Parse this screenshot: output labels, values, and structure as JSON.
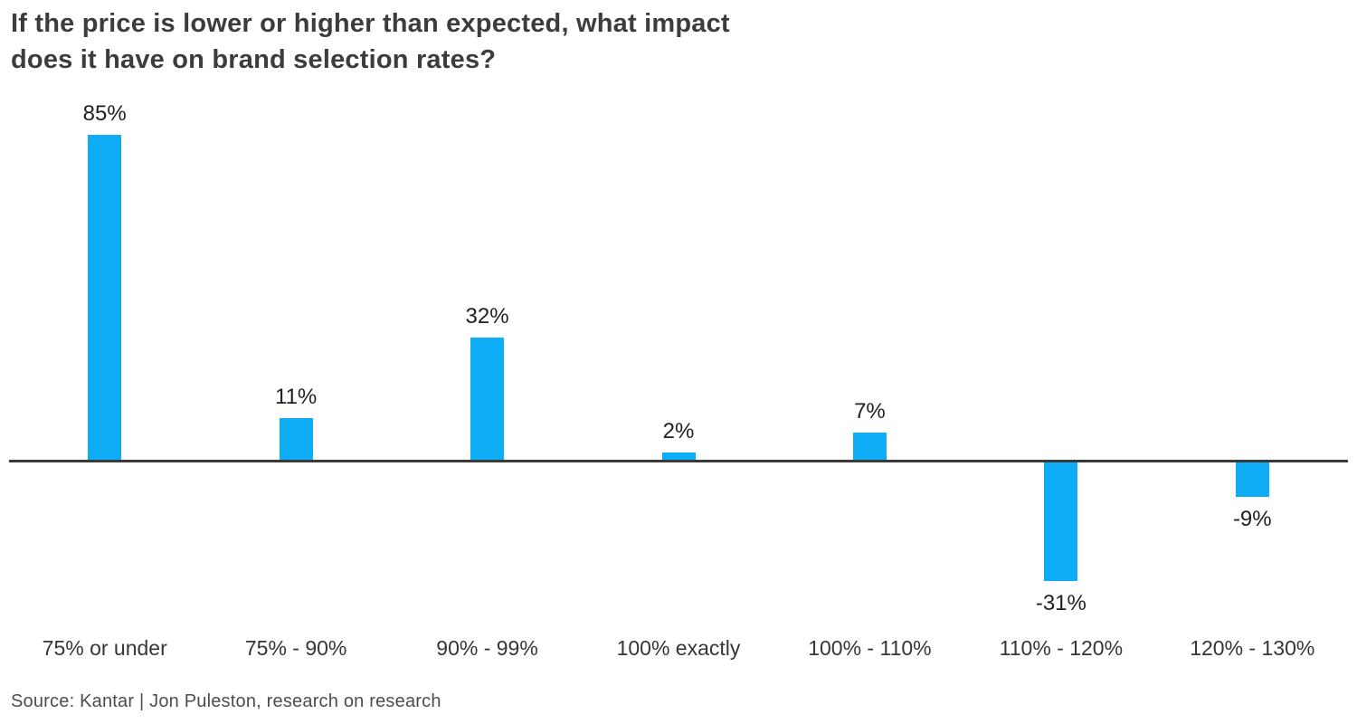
{
  "page": {
    "title_line1": "If the price is lower or higher than expected, what impact",
    "title_line2": "does it have on brand selection rates?",
    "source": "Source: Kantar | Jon Puleston, research on research"
  },
  "colors": {
    "bar": "#0fadf5",
    "axis": "#3a3a3a",
    "title_text": "#3c3c3c",
    "value_label_text": "#1f1f1f",
    "category_text": "#363636",
    "source_text": "#4d4d4d",
    "background": "#ffffff"
  },
  "chart_data": {
    "type": "bar",
    "title": "If the price is lower or higher than expected, what impact does it have on brand selection rates?",
    "categories": [
      "75% or under",
      "75% - 90%",
      "90% - 99%",
      "100% exactly",
      "100% - 110%",
      "110% - 120%",
      "120% - 130%"
    ],
    "values": [
      85,
      11,
      32,
      2,
      7,
      -31,
      -9
    ],
    "data_labels": [
      "85%",
      "11%",
      "32%",
      "2%",
      "7%",
      "-31%",
      "-9%"
    ],
    "ylabel": "",
    "xlabel": "",
    "ylim": [
      -40,
      95
    ],
    "grid": false,
    "legend": false,
    "bar_color": "#0fadf5",
    "baseline": 0,
    "source": "Source: Kantar | Jon Puleston, research on research"
  }
}
